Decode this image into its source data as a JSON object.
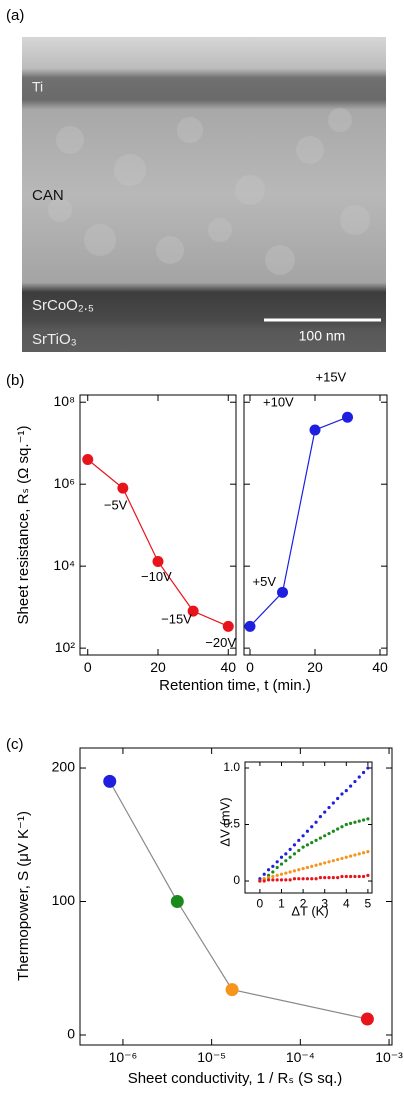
{
  "image": {
    "panel_label": "(a)",
    "layers": [
      "Ti",
      "CAN",
      "SrCoO₂.₅",
      "SrTiO₃"
    ],
    "scale_bar": "100 nm"
  },
  "chart_data": [
    {
      "type": "line",
      "panel_label": "(b)",
      "ylabel": "Sheet resistance, Rₛ (Ω sq.⁻¹)",
      "xlabel": "Retention time, t (min.)",
      "ylog": true,
      "x": [
        0,
        10,
        20,
        30,
        40
      ],
      "series": [
        {
          "color": "#e8141b",
          "values": [
            4000000,
            800000,
            13000,
            800,
            340
          ],
          "point_labels": [
            null,
            "−5V",
            "−10V",
            "−15V",
            "−20V"
          ]
        }
      ],
      "xlim": [
        -2.2,
        42.2
      ],
      "xticks": [
        0,
        20,
        40
      ],
      "ylim": [
        68,
        150000000
      ],
      "yticks": [
        {
          "value": 100,
          "label": "10²"
        },
        {
          "value": 10000,
          "label": "10⁴"
        },
        {
          "value": 1000000,
          "label": "10⁶"
        },
        {
          "value": 100000000,
          "label": "10⁸"
        }
      ]
    },
    {
      "type": "line",
      "ylog": true,
      "x": [
        0,
        10,
        20,
        30
      ],
      "series": [
        {
          "color": "#1f1fe0",
          "values": [
            340,
            2300,
            21000000,
            43000000
          ],
          "point_labels": [
            null,
            "+5V",
            "+10V",
            "+15V"
          ]
        }
      ],
      "xlim": [
        -1.85,
        42.15
      ],
      "xticks": [
        0,
        20,
        40
      ],
      "ylim": [
        68,
        150000000
      ],
      "yticks": [
        100,
        10000,
        1000000,
        100000000
      ],
      "ytick_labels": false
    },
    {
      "type": "line",
      "panel_label": "(c)",
      "ylabel": "Thermopower, S (μV K⁻¹)",
      "xlabel": "Sheet conductivity, 1 / Rₛ (S sq.)",
      "xlog": true,
      "x": [
        7.1e-07,
        4.1e-06,
        1.7e-05,
        0.00057
      ],
      "series": [
        {
          "color": "#888888",
          "colors": [
            "#1f1fe0",
            "#1a8a1a",
            "#f7941d",
            "#e8141b"
          ],
          "values": [
            190,
            100,
            34,
            12
          ]
        }
      ],
      "xlim": [
        3.28e-07,
        0.00108
      ],
      "xticks": [
        {
          "value": 1e-06,
          "label": "10⁻⁶"
        },
        {
          "value": 1e-05,
          "label": "10⁻⁵"
        },
        {
          "value": 0.0001,
          "label": "10⁻⁴"
        },
        {
          "value": 0.001,
          "label": "10⁻³"
        }
      ],
      "ylim": [
        -7.5,
        215
      ],
      "yticks": [
        0,
        100,
        200
      ]
    },
    {
      "type": "scatter",
      "ylabel": "ΔV (mV)",
      "xlabel": "ΔT (K)",
      "x": [
        0,
        0.2,
        0.4,
        0.6,
        0.8,
        1,
        1.2,
        1.4,
        1.6,
        1.8,
        2,
        2.2,
        2.4,
        2.6,
        2.8,
        3,
        3.2,
        3.4,
        3.6,
        3.8,
        4,
        4.2,
        4.4,
        4.6,
        4.8,
        5
      ],
      "series": [
        {
          "color": "#1f1fe0",
          "values": [
            0.02,
            0.06,
            0.1,
            0.13,
            0.17,
            0.21,
            0.24,
            0.28,
            0.32,
            0.36,
            0.4,
            0.44,
            0.48,
            0.52,
            0.57,
            0.61,
            0.65,
            0.69,
            0.73,
            0.77,
            0.8,
            0.84,
            0.88,
            0.92,
            0.96,
            1.0
          ]
        },
        {
          "color": "#1a8a1a",
          "values": [
            0,
            0.02,
            0.05,
            0.08,
            0.12,
            0.15,
            0.18,
            0.21,
            0.24,
            0.27,
            0.3,
            0.32,
            0.34,
            0.36,
            0.38,
            0.4,
            0.42,
            0.44,
            0.46,
            0.48,
            0.5,
            0.51,
            0.52,
            0.53,
            0.54,
            0.55
          ]
        },
        {
          "color": "#f7941d",
          "values": [
            0,
            0.02,
            0.03,
            0.04,
            0.05,
            0.06,
            0.07,
            0.08,
            0.09,
            0.1,
            0.11,
            0.12,
            0.13,
            0.14,
            0.15,
            0.16,
            0.17,
            0.18,
            0.19,
            0.2,
            0.21,
            0.22,
            0.23,
            0.24,
            0.25,
            0.26
          ]
        },
        {
          "color": "#e8141b",
          "values": [
            0,
            0,
            0.01,
            0.01,
            0.01,
            0.01,
            0.01,
            0.01,
            0.02,
            0.02,
            0.02,
            0.02,
            0.02,
            0.02,
            0.03,
            0.03,
            0.03,
            0.03,
            0.03,
            0.04,
            0.04,
            0.04,
            0.04,
            0.04,
            0.04,
            0.05
          ]
        }
      ],
      "xlim": [
        -0.69,
        5.19
      ],
      "xticks": [
        0,
        1,
        2,
        3,
        4,
        5
      ],
      "ylim": [
        -0.106,
        1.053
      ],
      "yticks": [
        0,
        {
          "value": 0.5,
          "label": "0.5"
        },
        {
          "value": 1,
          "label": "1.0"
        }
      ]
    }
  ]
}
